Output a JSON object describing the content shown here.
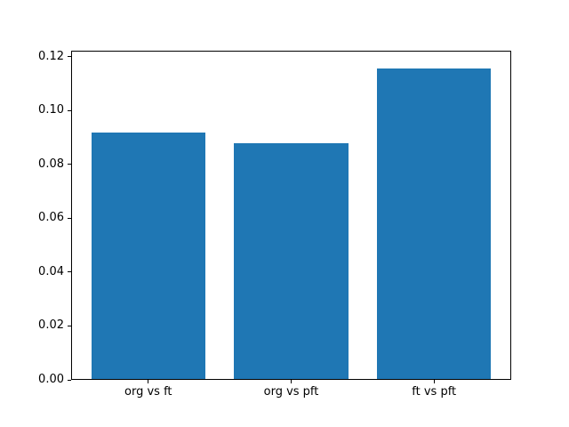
{
  "chart_data": {
    "type": "bar",
    "categories": [
      "org vs ft",
      "org vs pft",
      "ft vs pft"
    ],
    "values": [
      0.092,
      0.088,
      0.116
    ],
    "title": "",
    "xlabel": "",
    "ylabel": "",
    "ylim": [
      0,
      0.1222
    ],
    "xlim": [
      -0.54,
      2.54
    ],
    "bar_width": 0.8,
    "yticks": [
      0.0,
      0.02,
      0.04,
      0.06,
      0.08,
      0.1,
      0.12
    ],
    "ytick_labels": [
      "0.00",
      "0.02",
      "0.04",
      "0.06",
      "0.08",
      "0.10",
      "0.12"
    ],
    "grid": false,
    "legend": null,
    "bar_color": "#1f77b4",
    "spine_color": "#000000",
    "background_color": "#ffffff"
  }
}
